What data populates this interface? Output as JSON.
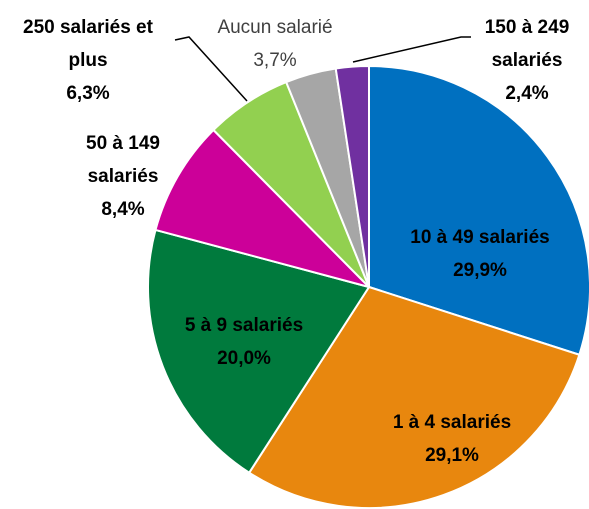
{
  "chart_data": {
    "type": "pie",
    "categories": [
      "10 à 49 salariés",
      "1 à 4 salariés",
      "5 à 9 salariés",
      "50 à 149 salariés",
      "250 salariés et plus",
      "Aucun salarié",
      "150 à 249 salariés"
    ],
    "values": [
      29.9,
      29.1,
      20.0,
      8.4,
      6.3,
      3.7,
      2.4
    ],
    "value_labels": [
      "29,9%",
      "29,1%",
      "20,0%",
      "8,4%",
      "6,3%",
      "3,7%",
      "2,4%"
    ],
    "colors": [
      "#0070c0",
      "#e8870e",
      "#007a3d",
      "#cc0099",
      "#92d050",
      "#a6a6a6",
      "#7030a0"
    ]
  }
}
